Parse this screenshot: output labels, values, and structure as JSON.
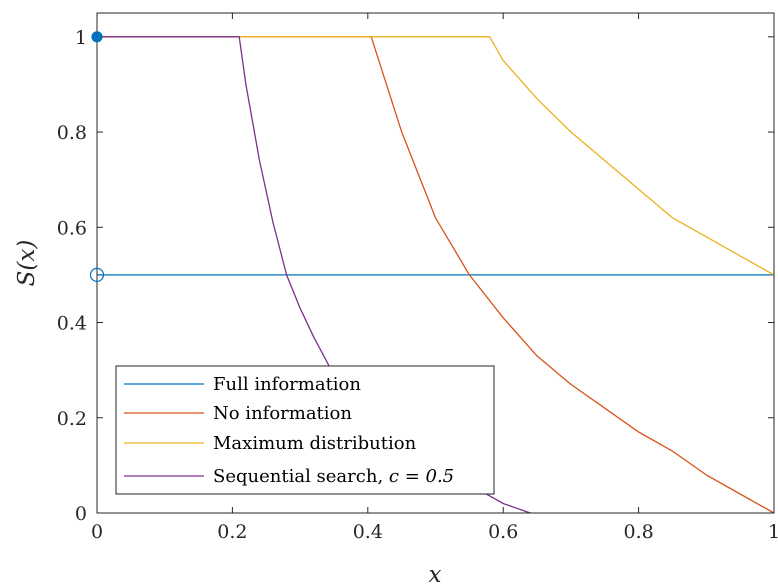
{
  "chart_data": {
    "type": "line",
    "xlabel": "x",
    "ylabel": "S(x)",
    "xlim": [
      0,
      1
    ],
    "ylim": [
      0,
      1.05
    ],
    "xticks": [
      0,
      0.2,
      0.4,
      0.6,
      0.8,
      1
    ],
    "xtick_labels": [
      "0",
      "0.2",
      "0.4",
      "0.6",
      "0.8",
      "1"
    ],
    "yticks": [
      0,
      0.2,
      0.4,
      0.6,
      0.8,
      1
    ],
    "ytick_labels": [
      "0",
      "0.2",
      "0.4",
      "0.6",
      "0.8",
      "1"
    ],
    "grid": false,
    "legend_position": "bottom-left",
    "series": [
      {
        "name": "Full information",
        "color": "#0072BD",
        "x": [
          0,
          1
        ],
        "y": [
          0.5,
          0.5
        ],
        "markers": [
          {
            "x": 0,
            "y": 1,
            "style": "filled-circle"
          },
          {
            "x": 0,
            "y": 0.5,
            "style": "open-circle"
          }
        ]
      },
      {
        "name": "No information",
        "color": "#D95319",
        "x": [
          0,
          0.405,
          0.45,
          0.5,
          0.55,
          0.6,
          0.65,
          0.7,
          0.75,
          0.8,
          0.85,
          0.9,
          0.95,
          1
        ],
        "y": [
          1,
          1,
          0.8,
          0.62,
          0.5,
          0.41,
          0.33,
          0.27,
          0.22,
          0.17,
          0.13,
          0.08,
          0.04,
          0
        ]
      },
      {
        "name": "Maximum distribution",
        "color": "#EDB120",
        "x": [
          0,
          0.58,
          0.6,
          0.65,
          0.7,
          0.75,
          0.8,
          0.85,
          0.9,
          0.95,
          1
        ],
        "y": [
          1,
          1,
          0.95,
          0.87,
          0.8,
          0.74,
          0.68,
          0.62,
          0.58,
          0.54,
          0.5
        ]
      },
      {
        "name": "Sequential search, ",
        "name_math": "c = 0.5",
        "color": "#7E2F8E",
        "x": [
          0,
          0.21,
          0.22,
          0.24,
          0.26,
          0.28,
          0.3,
          0.32,
          0.35,
          0.4,
          0.45,
          0.5,
          0.55,
          0.6,
          0.64
        ],
        "y": [
          1,
          1,
          0.9,
          0.74,
          0.61,
          0.5,
          0.43,
          0.37,
          0.29,
          0.21,
          0.15,
          0.1,
          0.06,
          0.02,
          0
        ]
      }
    ]
  }
}
